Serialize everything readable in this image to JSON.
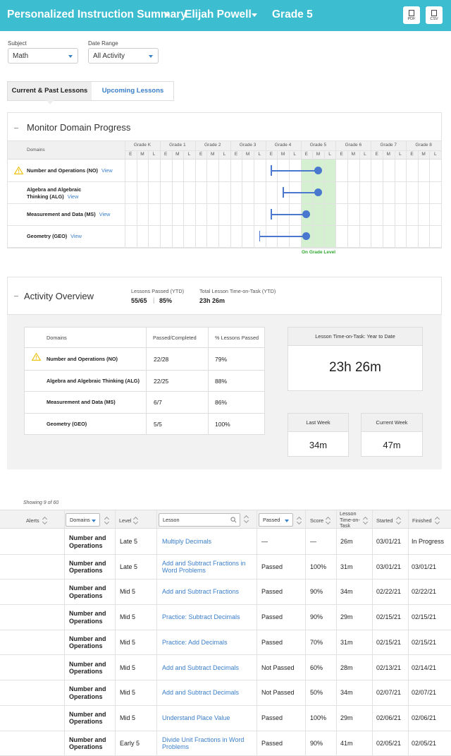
{
  "header": {
    "title": "Personalized Instruction Summary",
    "student": "Elijah Powell",
    "grade": "Grade 5",
    "pdf_label": "PDF",
    "csv_label": "CSV"
  },
  "filters": {
    "subject_label": "Subject",
    "subject_value": "Math",
    "date_label": "Date Range",
    "date_value": "All Activity"
  },
  "tabs": {
    "current": "Current & Past Lessons",
    "upcoming": "Upcoming Lessons"
  },
  "domain_progress": {
    "title": "Monitor Domain Progress",
    "domains_header": "Domains",
    "grades": [
      "Grade K",
      "Grade 1",
      "Grade 2",
      "Grade 3",
      "Grade 4",
      "Grade 5",
      "Grade 6",
      "Grade 7",
      "Grade 8"
    ],
    "sub_cols": [
      "E",
      "M",
      "L"
    ],
    "on_grade_label": "On Grade Level",
    "view_label": "View",
    "rows": [
      {
        "line1": "Number and Operations (NO)",
        "line2": "",
        "warning": true,
        "start_col": 12,
        "end_col": 16
      },
      {
        "line1": "Algebra and Algebraic",
        "line2": "Thinking (ALG)",
        "warning": false,
        "start_col": 13,
        "end_col": 16
      },
      {
        "line1": "Measurement and Data (MS)",
        "line2": "",
        "warning": false,
        "start_col": 12,
        "end_col": 15
      },
      {
        "line1": "Geometry (GEO)",
        "line2": "",
        "warning": false,
        "start_col": 11,
        "end_col": 15
      }
    ]
  },
  "activity": {
    "title": "Activity Overview",
    "passed_label": "Lessons Passed (YTD)",
    "passed_count": "55/65",
    "passed_pct": "85%",
    "time_label": "Total Lesson Time-on-Task (YTD)",
    "time_value": "23h 26m",
    "table_headers": [
      "Domains",
      "Passed/Completed",
      "% Lessons Passed"
    ],
    "table_rows": [
      {
        "domain": "Number and Operations (NO)",
        "passed": "22/28",
        "pct": "79%",
        "warning": true
      },
      {
        "domain": "Algebra and Algebraic Thinking (ALG)",
        "passed": "22/25",
        "pct": "88%",
        "warning": false
      },
      {
        "domain": "Measurement and Data (MS)",
        "passed": "6/7",
        "pct": "86%",
        "warning": false
      },
      {
        "domain": "Geometry (GEO)",
        "passed": "5/5",
        "pct": "100%",
        "warning": false
      }
    ],
    "ytd_box_label": "Lesson Time-on-Task: Year to Date",
    "ytd_box_value": "23h 26m",
    "last_week_label": "Last Week",
    "last_week_value": "34m",
    "current_week_label": "Current Week",
    "current_week_value": "47m"
  },
  "lessons": {
    "showing": "Showing 9 of 60",
    "headers": {
      "alerts": "Alerts",
      "domains": "Domains",
      "level": "Level",
      "lesson": "Lesson",
      "passed": "Passed",
      "score": "Score",
      "time1": "Lesson",
      "time2": "Time-on-",
      "time3": "Task",
      "started": "Started",
      "finished": "Finished"
    },
    "rows": [
      {
        "domain1": "Number and",
        "domain2": "Operations",
        "level": "Late 5",
        "lesson1": "Multiply Decimals",
        "lesson2": "",
        "passed": "—",
        "score": "—",
        "time": "26m",
        "started": "03/01/21",
        "finished": "In Progress"
      },
      {
        "domain1": "Number and",
        "domain2": "Operations",
        "level": "Late 5",
        "lesson1": "Add and Subtract Fractions in",
        "lesson2": "Word Problems",
        "passed": "Passed",
        "score": "100%",
        "time": "31m",
        "started": "03/01/21",
        "finished": "03/01/21"
      },
      {
        "domain1": "Number and",
        "domain2": "Operations",
        "level": "Mid 5",
        "lesson1": "Add and Subtract Fractions",
        "lesson2": "",
        "passed": "Passed",
        "score": "90%",
        "time": "34m",
        "started": "02/22/21",
        "finished": "02/22/21"
      },
      {
        "domain1": "Number and",
        "domain2": "Operations",
        "level": "Mid 5",
        "lesson1": "Practice: Subtract Decimals",
        "lesson2": "",
        "passed": "Passed",
        "score": "90%",
        "time": "29m",
        "started": "02/15/21",
        "finished": "02/15/21"
      },
      {
        "domain1": "Number and",
        "domain2": "Operations",
        "level": "Mid 5",
        "lesson1": "Practice: Add Decimals",
        "lesson2": "",
        "passed": "Passed",
        "score": "70%",
        "time": "31m",
        "started": "02/15/21",
        "finished": "02/15/21"
      },
      {
        "domain1": "Number and",
        "domain2": "Operations",
        "level": "Mid 5",
        "lesson1": "Add and Subtract Decimals",
        "lesson2": "",
        "passed": "Not Passed",
        "score": "60%",
        "time": "28m",
        "started": "02/13/21",
        "finished": "02/14/21"
      },
      {
        "domain1": "Number and",
        "domain2": "Operations",
        "level": "Mid 5",
        "lesson1": "Add and Subtract Decimals",
        "lesson2": "",
        "passed": "Not Passed",
        "score": "50%",
        "time": "34m",
        "started": "02/07/21",
        "finished": "02/07/21"
      },
      {
        "domain1": "Number and",
        "domain2": "Operations",
        "level": "Mid 5",
        "lesson1": "Understand Place Value",
        "lesson2": "",
        "passed": "Passed",
        "score": "100%",
        "time": "29m",
        "started": "02/06/21",
        "finished": "02/06/21"
      },
      {
        "domain1": "Number and",
        "domain2": "Operations",
        "level": "Early 5",
        "lesson1": "Divide Unit Fractions in Word",
        "lesson2": "Problems",
        "passed": "Passed",
        "score": "90%",
        "time": "41m",
        "started": "02/05/21",
        "finished": "02/05/21"
      }
    ]
  },
  "colors": {
    "header_bg": "#3dbdd0",
    "link": "#3a7ec8",
    "marker": "#4a78cf",
    "on_grade_fill": "#d4f0d0",
    "on_grade_text": "#2fa82f",
    "warning": "#f0c419"
  }
}
